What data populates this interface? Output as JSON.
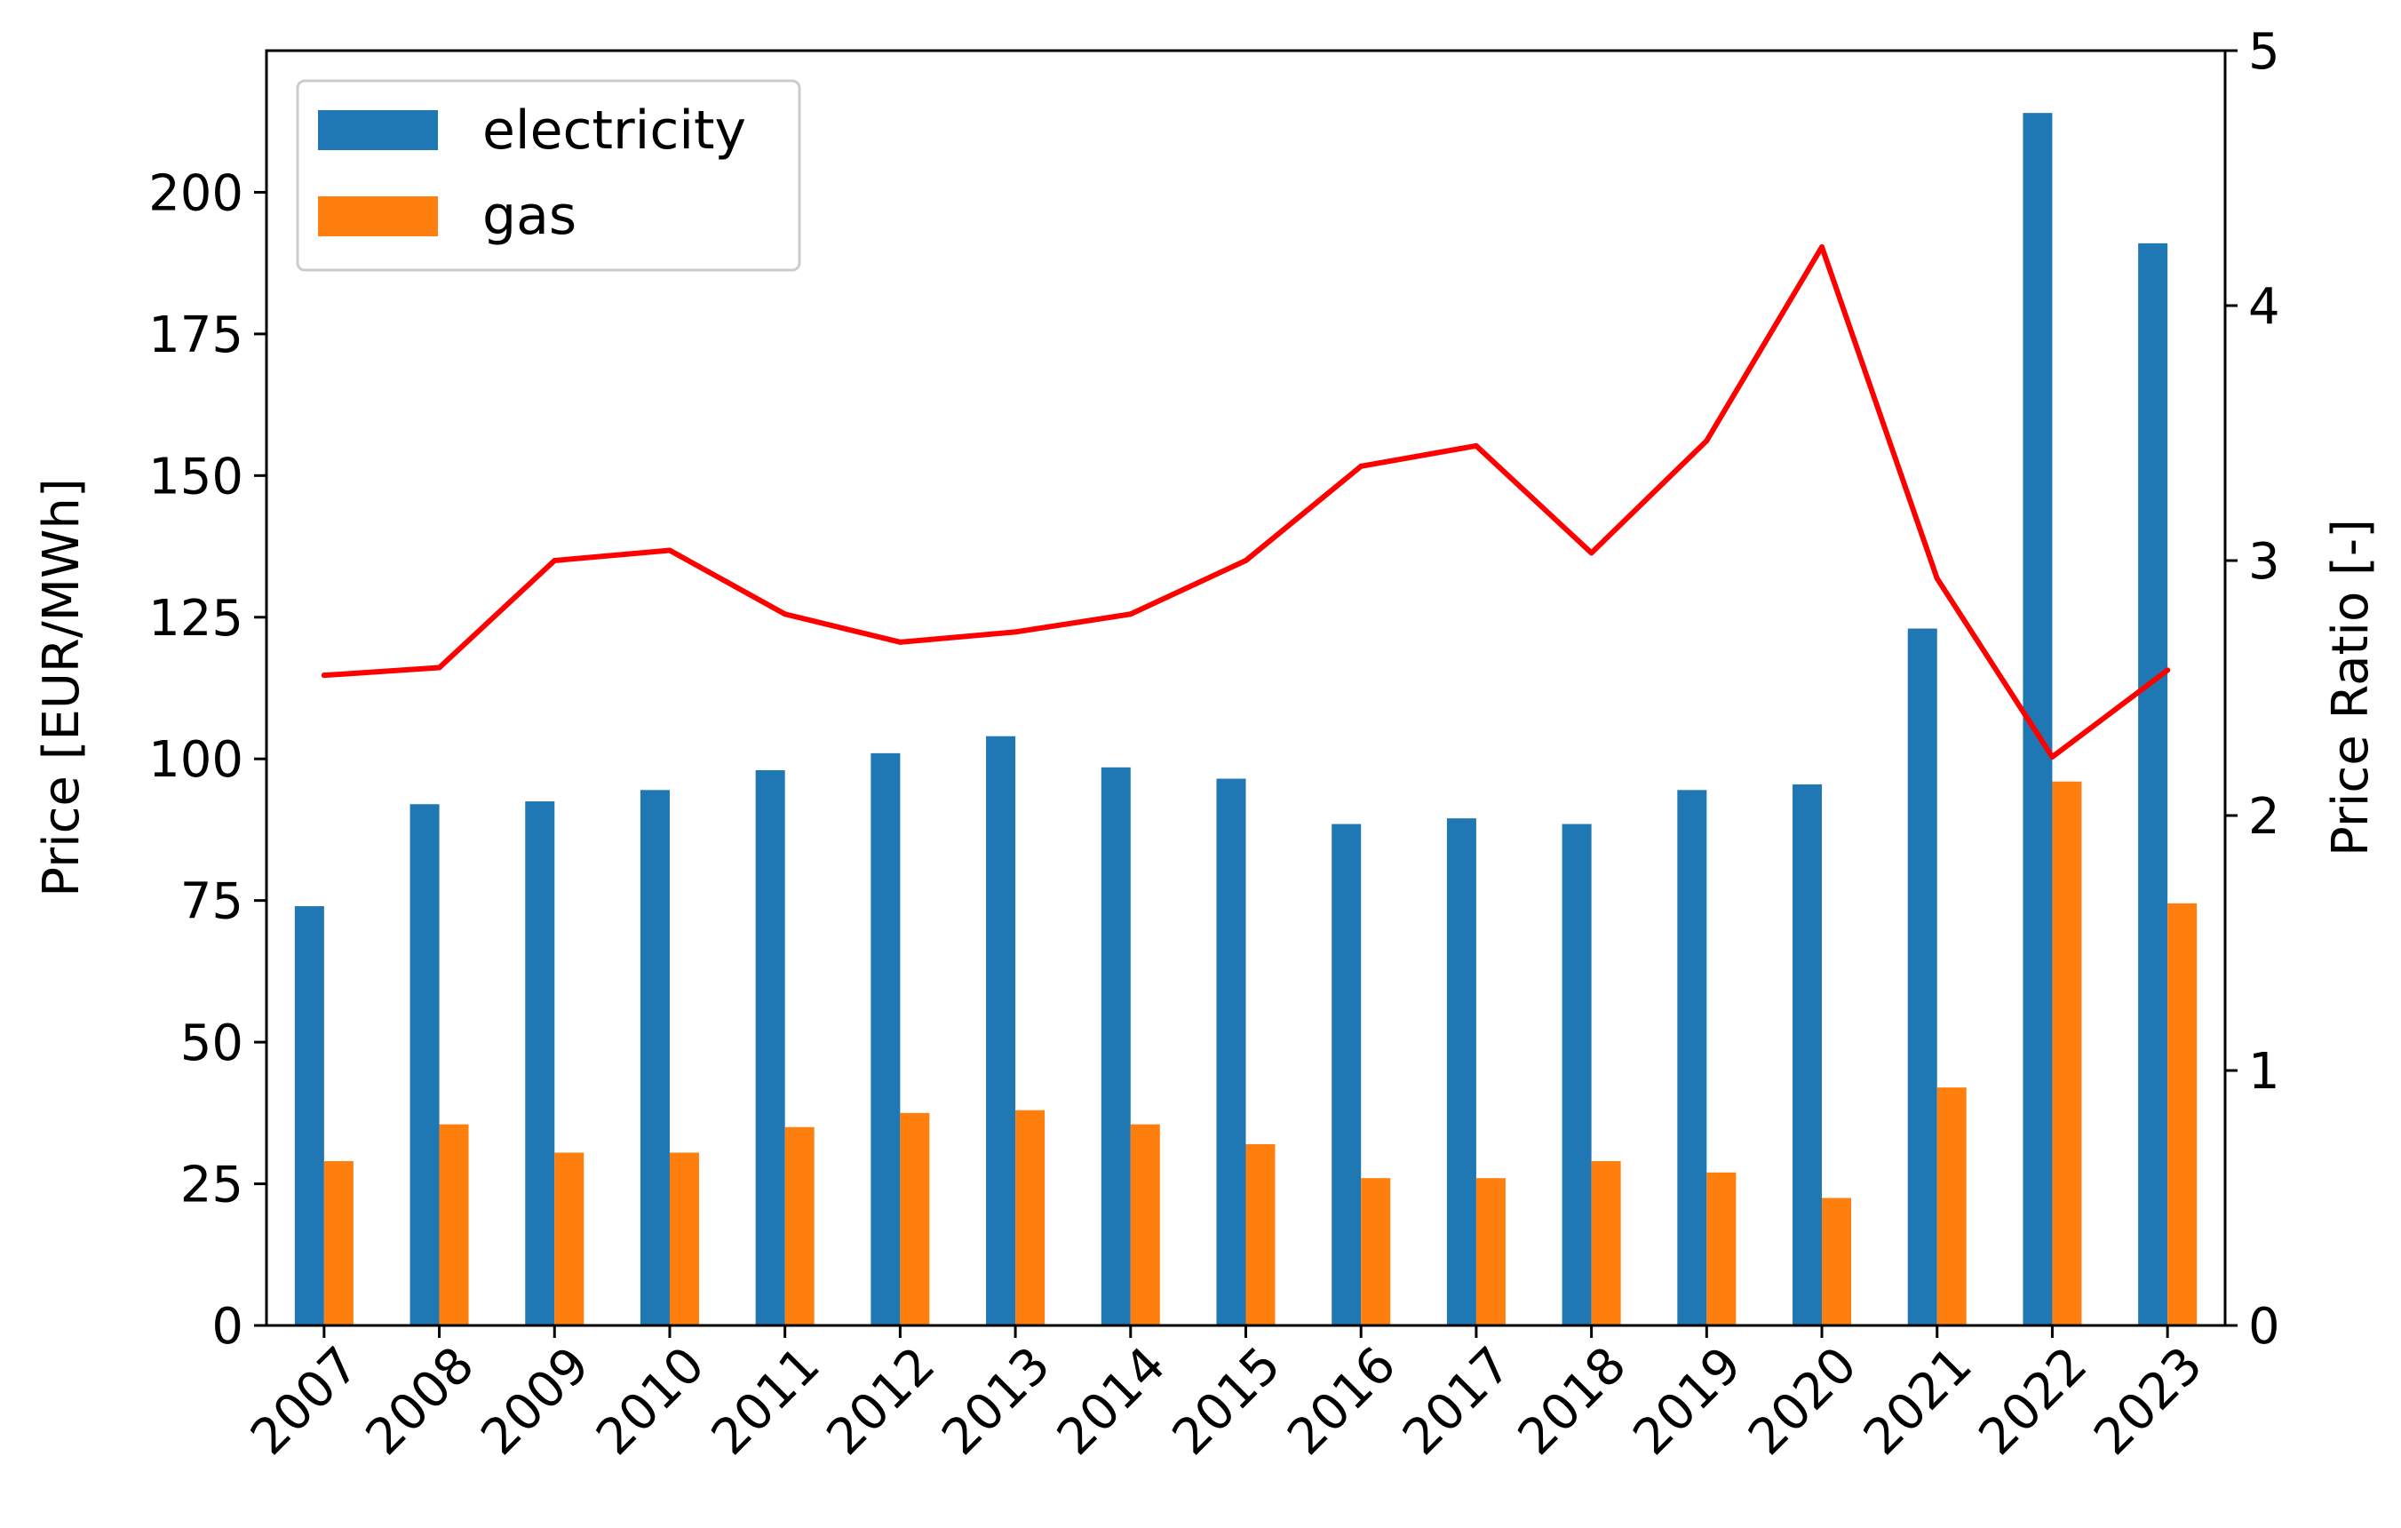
{
  "chart_data": {
    "type": "bar",
    "title": "",
    "categories": [
      "2007",
      "2008",
      "2009",
      "2010",
      "2011",
      "2012",
      "2013",
      "2014",
      "2015",
      "2016",
      "2017",
      "2018",
      "2019",
      "2020",
      "2021",
      "2022",
      "2023"
    ],
    "series": [
      {
        "name": "electricity",
        "type": "bar",
        "axis": "left",
        "color": "#1f77b4",
        "values": [
          74,
          92,
          92.5,
          94.5,
          98,
          101,
          104,
          98.5,
          96.5,
          88.5,
          89.5,
          88.5,
          94.5,
          95.5,
          123,
          214,
          191
        ]
      },
      {
        "name": "gas",
        "type": "bar",
        "axis": "left",
        "color": "#ff7f0e",
        "values": [
          29,
          35.5,
          30.5,
          30.5,
          35,
          37.5,
          38,
          35.5,
          32,
          26,
          26,
          29,
          27,
          22.5,
          42,
          96,
          74.5
        ]
      },
      {
        "name": "price ratio",
        "type": "line",
        "axis": "right",
        "color": "#ff0000",
        "values": [
          2.55,
          2.58,
          3.0,
          3.04,
          2.79,
          2.68,
          2.72,
          2.79,
          3.0,
          3.37,
          3.45,
          3.03,
          3.47,
          4.23,
          2.93,
          2.23,
          2.57
        ]
      }
    ],
    "ylabel": "Price [EUR/MWh]",
    "ylim": [
      0,
      225
    ],
    "yticks": [
      0,
      25,
      50,
      75,
      100,
      125,
      150,
      175,
      200
    ],
    "y2label": "Price Ratio [-]",
    "y2lim": [
      0,
      5
    ],
    "y2ticks": [
      0,
      1,
      2,
      3,
      4,
      5
    ],
    "xlabel": "",
    "grid": false,
    "legend": {
      "position": "top-left",
      "entries": [
        "electricity",
        "gas"
      ]
    }
  }
}
